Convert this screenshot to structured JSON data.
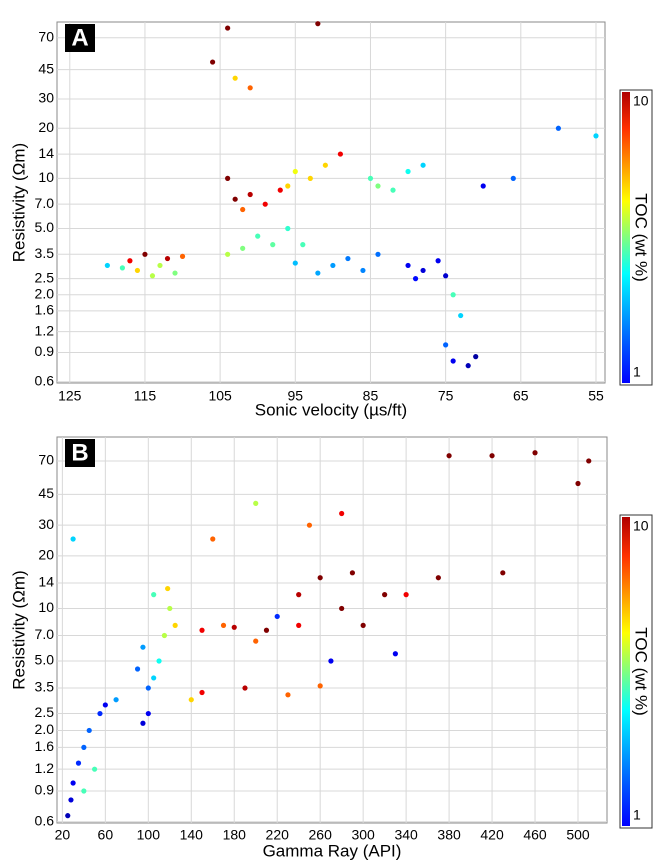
{
  "chart_data": [
    {
      "type": "scatter",
      "panel": "A",
      "xlabel": "Sonic velocity (µs/ft)",
      "ylabel": "Resistivity (Ωm)",
      "log_y": true,
      "grid": true,
      "xlim": [
        126.7,
        53.8
      ],
      "ylim": [
        0.59,
        87
      ],
      "xticks": [
        125,
        115,
        105,
        95,
        85,
        75,
        65,
        55
      ],
      "yticks": [
        0.6,
        0.9,
        1.2,
        1.6,
        {
          "value": 2,
          "label": "2.0"
        },
        2.5,
        3.5,
        {
          "value": 5,
          "label": "5.0"
        },
        {
          "value": 7,
          "label": "7.0"
        },
        10,
        14,
        20,
        30,
        45,
        70
      ],
      "colorbar_label": "TOC (wt %)",
      "clim": [
        1,
        10
      ],
      "cticks": [
        1,
        10
      ],
      "x": [
        117,
        115,
        113,
        116,
        112,
        118,
        114,
        110,
        120,
        111,
        103,
        101,
        99,
        104,
        102,
        97,
        93,
        95,
        91,
        89,
        96,
        85,
        82,
        80,
        84,
        78,
        100,
        98,
        102,
        96,
        94,
        104,
        90,
        88,
        86,
        92,
        95,
        84,
        80,
        78,
        76,
        79,
        75,
        74,
        72,
        71,
        75,
        73,
        74,
        104,
        106,
        101,
        103,
        60,
        66,
        70,
        55,
        92
      ],
      "values": [
        3.2,
        3.5,
        3.0,
        2.8,
        3.3,
        2.9,
        2.6,
        3.4,
        3.0,
        2.7,
        7.5,
        8,
        7,
        10,
        6.5,
        8.5,
        10,
        11,
        12,
        14,
        9,
        10,
        8.5,
        11,
        9,
        12,
        4.5,
        4,
        3.8,
        5,
        4,
        3.5,
        3,
        3.3,
        2.8,
        2.7,
        3.1,
        3.5,
        3,
        2.8,
        3.2,
        2.5,
        2.6,
        0.8,
        0.75,
        0.85,
        1.0,
        1.5,
        2.0,
        80,
        50,
        35,
        40,
        20,
        10,
        9,
        18,
        85
      ],
      "toc": [
        9,
        10,
        6,
        7,
        9.5,
        5,
        6,
        8,
        4,
        5.5,
        10,
        9.5,
        9,
        10,
        8,
        9,
        7,
        6.5,
        7,
        9,
        7,
        5,
        5,
        4.5,
        5.5,
        4,
        5,
        5.2,
        5.5,
        4.8,
        5,
        6,
        3.5,
        3.2,
        3.3,
        3.6,
        3.8,
        3.1,
        2,
        1.8,
        2,
        2.2,
        1.7,
        2,
        1.5,
        1.3,
        3,
        4,
        5,
        10,
        10,
        8,
        7,
        3,
        3,
        2,
        4,
        10
      ]
    },
    {
      "type": "scatter",
      "panel": "B",
      "xlabel": "Gamma Ray (API)",
      "ylabel": "Resistivity (Ωm)",
      "log_y": true,
      "grid": true,
      "xlim": [
        15,
        527
      ],
      "ylim": [
        0.59,
        96
      ],
      "xticks": [
        20,
        60,
        100,
        140,
        180,
        220,
        260,
        300,
        340,
        380,
        420,
        460,
        500
      ],
      "yticks": [
        0.6,
        0.9,
        1.2,
        1.6,
        {
          "value": 2,
          "label": "2.0"
        },
        2.5,
        3.5,
        {
          "value": 5,
          "label": "5.0"
        },
        {
          "value": 7,
          "label": "7.0"
        },
        10,
        14,
        20,
        30,
        45,
        70
      ],
      "colorbar_label": "TOC (wt %)",
      "clim": [
        1,
        10
      ],
      "cticks": [
        1,
        10
      ],
      "x": [
        25,
        28,
        30,
        35,
        40,
        45,
        55,
        60,
        70,
        50,
        40,
        95,
        100,
        100,
        105,
        110,
        115,
        120,
        118,
        125,
        105,
        95,
        90,
        150,
        180,
        210,
        240,
        200,
        170,
        150,
        190,
        230,
        260,
        140,
        260,
        240,
        280,
        300,
        320,
        290,
        380,
        420,
        460,
        510,
        500,
        430,
        370,
        340,
        330,
        270,
        250,
        280,
        200,
        160,
        220,
        30
      ],
      "values": [
        0.65,
        0.8,
        1.0,
        1.3,
        1.6,
        2.0,
        2.5,
        2.8,
        3.0,
        1.2,
        0.9,
        2.2,
        2.5,
        3.5,
        4.0,
        5,
        7,
        10,
        13,
        8,
        12,
        6,
        4.5,
        7.5,
        7.8,
        7.5,
        8,
        6.5,
        8,
        3.3,
        3.5,
        3.2,
        3.6,
        3,
        15,
        12,
        10,
        8,
        12,
        16,
        75,
        75,
        78,
        70,
        52,
        16,
        15,
        12,
        5.5,
        5,
        30,
        35,
        40,
        25,
        9,
        25
      ],
      "toc": [
        1.5,
        1.8,
        2,
        2.5,
        3,
        3,
        2.5,
        2,
        3.5,
        5,
        5,
        1.8,
        2,
        3,
        4,
        4.5,
        6,
        6,
        7,
        7,
        5,
        3.5,
        3,
        9,
        9.5,
        10,
        9,
        8,
        8,
        9,
        9.5,
        8,
        8,
        7,
        10,
        9.5,
        10,
        10,
        10,
        10,
        10,
        10,
        10,
        10,
        10,
        10,
        10,
        9,
        2,
        2,
        8,
        9,
        6,
        8,
        2.5,
        4
      ]
    }
  ]
}
